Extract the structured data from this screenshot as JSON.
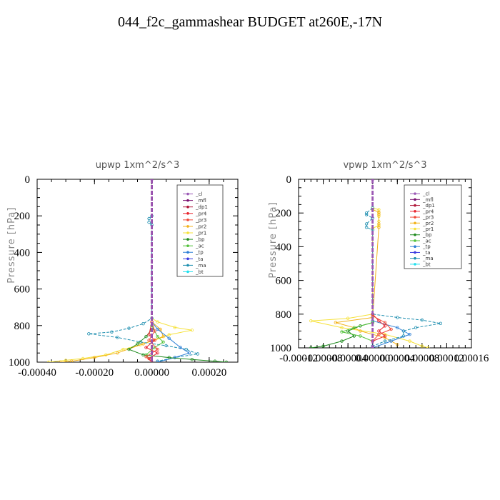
{
  "figure": {
    "title": "044_f2c_gammashear  BUDGET at260E,-17N"
  },
  "legend_entries": [
    "_cl",
    "_mfl",
    "_dp1",
    "_pr4",
    "_pr3",
    "_pr2",
    "_pr1",
    "_bp",
    "_ac",
    "_tp",
    "_ta",
    "_ma",
    "_bt"
  ],
  "series_colors": {
    "_cl": "#9b59b6",
    "_mfl": "#7a1070",
    "_dp1": "#b0183a",
    "_pr4": "#e8242e",
    "_pr3": "#f04a38",
    "_pr2": "#f2b21a",
    "_pr1": "#f6e23a",
    "_bp": "#1e8a1e",
    "_ac": "#52c23a",
    "_tp": "#2d7fd6",
    "_ta": "#3a3adf",
    "_ma": "#1f8fb0",
    "_bt": "#22e0ee"
  },
  "chart_data": [
    {
      "type": "line",
      "title": "upwp   1xm^2/s^3",
      "ylabel": "Pressure [hPa]",
      "xlabel": "",
      "xlim": [
        -0.0004,
        0.0003
      ],
      "ylim": [
        1000,
        0
      ],
      "xticks": [
        -0.0004,
        -0.0002,
        0.0,
        0.0002
      ],
      "xtick_labels": [
        "-0.00040",
        "-0.00020",
        "0.00000",
        "0.00020"
      ],
      "yticks": [
        0,
        200,
        400,
        600,
        800,
        1000
      ],
      "ytick_labels": [
        "0",
        "200",
        "400",
        "600",
        "800",
        "1000"
      ],
      "legend_position": "top-right",
      "series": [
        {
          "name": "_pr1",
          "points": [
            [
              0,
              760
            ],
            [
              2e-05,
              780
            ],
            [
              8e-05,
              810
            ],
            [
              0.00014,
              825
            ],
            [
              6e-05,
              850
            ],
            [
              1e-05,
              880
            ],
            [
              -4e-05,
              905
            ],
            [
              -0.0001,
              930
            ],
            [
              -0.00016,
              960
            ],
            [
              -0.00024,
              980
            ],
            [
              -0.0003,
              990
            ],
            [
              -0.00036,
              1000
            ]
          ]
        },
        {
          "name": "_pr2",
          "points": [
            [
              0,
              780
            ],
            [
              3e-05,
              820
            ],
            [
              4e-05,
              860
            ],
            [
              -3e-05,
              900
            ],
            [
              -0.00012,
              950
            ],
            [
              -0.0002,
              975
            ],
            [
              -0.00028,
              995
            ],
            [
              -0.00032,
              1000
            ]
          ]
        },
        {
          "name": "_ma",
          "points": [
            [
              0,
              200
            ],
            [
              -1e-05,
              215
            ],
            [
              -1e-05,
              235
            ],
            [
              0,
              250
            ],
            [
              0,
              760
            ],
            [
              -3e-05,
              790
            ],
            [
              -8e-05,
              815
            ],
            [
              -0.00014,
              835
            ],
            [
              -0.00022,
              845
            ],
            [
              -0.00012,
              865
            ],
            [
              -4e-05,
              890
            ],
            [
              5e-05,
              910
            ],
            [
              0.00012,
              930
            ],
            [
              0.00016,
              955
            ],
            [
              8e-05,
              975
            ],
            [
              2e-05,
              995
            ]
          ]
        },
        {
          "name": "_tp",
          "points": [
            [
              0,
              780
            ],
            [
              2e-05,
              820
            ],
            [
              6e-05,
              870
            ],
            [
              0.0001,
              920
            ],
            [
              0.00013,
              950
            ],
            [
              8e-05,
              975
            ],
            [
              2e-05,
              1000
            ]
          ]
        },
        {
          "name": "_bp",
          "points": [
            [
              0,
              820
            ],
            [
              -2e-05,
              860
            ],
            [
              -5e-05,
              900
            ],
            [
              -8e-05,
              930
            ],
            [
              -3e-05,
              960
            ],
            [
              6e-05,
              975
            ],
            [
              0.00014,
              985
            ],
            [
              0.00022,
              995
            ],
            [
              0.00026,
              1000
            ]
          ]
        },
        {
          "name": "_ac",
          "points": [
            [
              0,
              800
            ],
            [
              2e-05,
              860
            ],
            [
              4e-05,
              890
            ],
            [
              1e-05,
              920
            ],
            [
              -2e-05,
              960
            ],
            [
              0,
              1000
            ]
          ]
        },
        {
          "name": "_pr4",
          "points": [
            [
              0,
              780
            ],
            [
              -1e-05,
              850
            ],
            [
              1e-05,
              880
            ],
            [
              -2e-05,
              920
            ],
            [
              2e-05,
              950
            ],
            [
              -1e-05,
              980
            ],
            [
              0,
              1000
            ]
          ]
        },
        {
          "name": "_pr3",
          "points": [
            [
              0,
              780
            ],
            [
              1e-05,
              830
            ],
            [
              -1e-05,
              880
            ],
            [
              2e-05,
              930
            ],
            [
              -2e-05,
              970
            ],
            [
              0,
              1000
            ]
          ]
        },
        {
          "name": "_dp1",
          "points": [
            [
              0,
              0
            ],
            [
              0,
              1000
            ]
          ]
        },
        {
          "name": "_mfl",
          "points": [
            [
              0,
              0
            ],
            [
              0,
              1000
            ]
          ]
        },
        {
          "name": "_cl",
          "points": [
            [
              0,
              0
            ],
            [
              0,
              1000
            ]
          ]
        }
      ]
    },
    {
      "type": "line",
      "title": "vpwp   1xm^2/s^3",
      "ylabel": "Pressure [hPa]",
      "xlabel": "",
      "xlim": [
        -0.00012,
        0.00016
      ],
      "ylim": [
        1000,
        0
      ],
      "xticks": [
        -0.00012,
        -8e-05,
        -4e-05,
        0.0,
        4e-05,
        8e-05,
        0.00012,
        0.00016
      ],
      "xtick_labels": [
        "-0.00012",
        "-0.00008",
        "-0.00004",
        "0.00000",
        "0.00004",
        "0.00008",
        "0.00012",
        "0.00016"
      ],
      "yticks": [
        0,
        200,
        400,
        600,
        800,
        1000
      ],
      "ytick_labels": [
        "0",
        "200",
        "400",
        "600",
        "800",
        "1000"
      ],
      "legend_position": "top-right",
      "series": [
        {
          "name": "_pr1",
          "points": [
            [
              0,
              170
            ],
            [
              1e-05,
              180
            ],
            [
              1e-05,
              200
            ],
            [
              1e-05,
              220
            ],
            [
              1e-05,
              250
            ],
            [
              1e-05,
              275
            ],
            [
              0,
              290
            ],
            [
              0,
              800
            ],
            [
              -4e-05,
              825
            ],
            [
              -0.0001,
              840
            ],
            [
              -5e-05,
              880
            ],
            [
              2e-05,
              920
            ],
            [
              6e-05,
              960
            ],
            [
              8e-05,
              990
            ],
            [
              9e-05,
              1000
            ]
          ]
        },
        {
          "name": "_pr2",
          "points": [
            [
              0,
              180
            ],
            [
              1e-05,
              195
            ],
            [
              1e-05,
              210
            ],
            [
              1e-05,
              265
            ],
            [
              1e-05,
              285
            ],
            [
              0,
              820
            ],
            [
              -6e-05,
              850
            ],
            [
              -3e-05,
              880
            ],
            [
              -2e-05,
              900
            ],
            [
              2e-05,
              940
            ],
            [
              4e-05,
              980
            ]
          ]
        },
        {
          "name": "_ma",
          "points": [
            [
              0,
              170
            ],
            [
              -1e-05,
              200
            ],
            [
              -1e-05,
              210
            ],
            [
              0,
              230
            ],
            [
              -1e-05,
              265
            ],
            [
              -1e-05,
              285
            ],
            [
              0,
              300
            ],
            [
              0,
              800
            ],
            [
              4e-05,
              820
            ],
            [
              8e-05,
              835
            ],
            [
              0.00011,
              855
            ],
            [
              7e-05,
              880
            ],
            [
              5e-05,
              900
            ],
            [
              5e-05,
              930
            ],
            [
              2e-05,
              960
            ],
            [
              0,
              990
            ]
          ]
        },
        {
          "name": "_tp",
          "points": [
            [
              0,
              840
            ],
            [
              4e-05,
              880
            ],
            [
              6e-05,
              920
            ],
            [
              3e-05,
              960
            ],
            [
              0,
              1000
            ]
          ]
        },
        {
          "name": "_bp",
          "points": [
            [
              0,
              850
            ],
            [
              -2e-05,
              870
            ],
            [
              -4e-05,
              900
            ],
            [
              -3e-05,
              930
            ],
            [
              -5e-05,
              960
            ],
            [
              -8e-05,
              990
            ],
            [
              -0.0001,
              1000
            ]
          ]
        },
        {
          "name": "_ac",
          "points": [
            [
              0,
              850
            ],
            [
              -3e-05,
              880
            ],
            [
              -5e-05,
              905
            ],
            [
              -2e-05,
              930
            ],
            [
              0,
              960
            ]
          ]
        },
        {
          "name": "_pr4",
          "points": [
            [
              0,
              800
            ],
            [
              1e-05,
              840
            ],
            [
              2e-05,
              870
            ],
            [
              1e-05,
              900
            ],
            [
              2e-05,
              930
            ],
            [
              0,
              960
            ]
          ]
        },
        {
          "name": "_pr3",
          "points": [
            [
              0,
              810
            ],
            [
              2e-05,
              850
            ],
            [
              3e-05,
              890
            ],
            [
              1e-05,
              920
            ],
            [
              0,
              960
            ]
          ]
        },
        {
          "name": "_dp1",
          "points": [
            [
              0,
              0
            ],
            [
              0,
              1000
            ]
          ]
        },
        {
          "name": "_mfl",
          "points": [
            [
              0,
              0
            ],
            [
              0,
              1000
            ]
          ]
        },
        {
          "name": "_cl",
          "points": [
            [
              0,
              0
            ],
            [
              0,
              1000
            ]
          ]
        }
      ]
    }
  ]
}
